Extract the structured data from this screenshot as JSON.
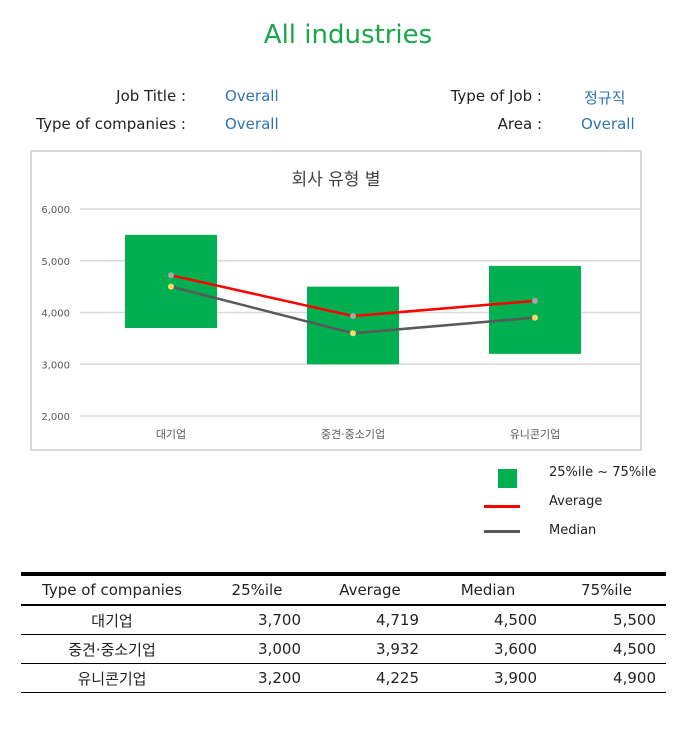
{
  "title": "All industries",
  "filters": {
    "job_title": {
      "label": "Job Title :",
      "value": "Overall"
    },
    "type_of_job": {
      "label": "Type of Job :",
      "value": "정규직"
    },
    "type_of_companies": {
      "label": "Type of companies :",
      "value": "Overall"
    },
    "area": {
      "label": "Area :",
      "value": "Overall"
    }
  },
  "colors": {
    "box": "#00b050",
    "average": "#ff0000",
    "median": "#595959",
    "average_dot": "#a6a6a6",
    "median_dot": "#ffd966",
    "filter_value": "#2e74b5"
  },
  "legend": {
    "range": "25%ile ~ 75%ile",
    "average": "Average",
    "median": "Median"
  },
  "chart_data": {
    "type": "bar",
    "title": "회사 유형 별",
    "categories": [
      "대기업",
      "중견·중소기업",
      "유니콘기업"
    ],
    "ylim": [
      2000,
      6000
    ],
    "yticks": [
      2000,
      3000,
      4000,
      5000,
      6000
    ],
    "ytick_labels": [
      "2,000",
      "3,000",
      "4,000",
      "5,000",
      "6,000"
    ],
    "grid": true,
    "legend_position": "bottom-right",
    "series": [
      {
        "name": "25%ile ~ 75%ile",
        "low": [
          3700,
          3000,
          3200
        ],
        "high": [
          5500,
          4500,
          4900
        ]
      },
      {
        "name": "Average",
        "values": [
          4719,
          3932,
          4225
        ]
      },
      {
        "name": "Median",
        "values": [
          4500,
          3600,
          3900
        ]
      }
    ]
  },
  "table": {
    "headers": [
      "Type of companies",
      "25%ile",
      "Average",
      "Median",
      "75%ile"
    ],
    "rows": [
      [
        "대기업",
        "3,700",
        "4,719",
        "4,500",
        "5,500"
      ],
      [
        "중견·중소기업",
        "3,000",
        "3,932",
        "3,600",
        "4,500"
      ],
      [
        "유니콘기업",
        "3,200",
        "4,225",
        "3,900",
        "4,900"
      ]
    ]
  }
}
